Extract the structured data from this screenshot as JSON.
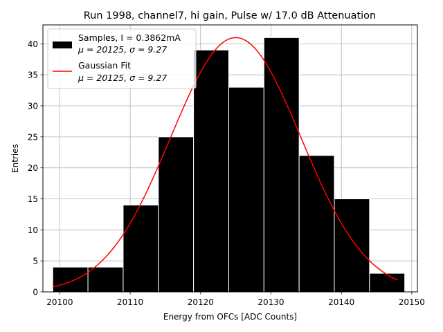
{
  "chart_data": {
    "type": "bar",
    "title": "Run 1998, channel7, hi gain, Pulse w/ 17.0 dB Attenuation",
    "xlabel": "Energy from OFCs [ADC Counts]",
    "ylabel": "Entries",
    "xlim": [
      20097.6,
      20150.8
    ],
    "ylim": [
      0,
      43.05
    ],
    "xticks": [
      20100,
      20110,
      20120,
      20130,
      20140,
      20150
    ],
    "yticks": [
      0,
      5,
      10,
      15,
      20,
      25,
      30,
      35,
      40
    ],
    "grid": true,
    "legend_position": "top-left",
    "bins": [
      {
        "x0": 20099,
        "x1": 20104,
        "value": 4
      },
      {
        "x0": 20104,
        "x1": 20109,
        "value": 4
      },
      {
        "x0": 20109,
        "x1": 20114,
        "value": 14
      },
      {
        "x0": 20114,
        "x1": 20119,
        "value": 25
      },
      {
        "x0": 20119,
        "x1": 20124,
        "value": 39
      },
      {
        "x0": 20124,
        "x1": 20129,
        "value": 33
      },
      {
        "x0": 20129,
        "x1": 20134,
        "value": 41
      },
      {
        "x0": 20134,
        "x1": 20139,
        "value": 22
      },
      {
        "x0": 20139,
        "x1": 20144,
        "value": 15
      },
      {
        "x0": 20144,
        "x1": 20149,
        "value": 3
      }
    ],
    "fit": {
      "amplitude": 41,
      "mu": 20125,
      "sigma": 9.27,
      "x_range": [
        20099,
        20148
      ]
    },
    "series": [
      {
        "name": "Samples, I = 0.3862mA",
        "name_line2": "μ = 20125, σ = 9.27",
        "color": "#000000"
      },
      {
        "name": "Gaussian Fit",
        "name_line2": "μ = 20125, σ = 9.27",
        "color": "#ff0000"
      }
    ]
  }
}
